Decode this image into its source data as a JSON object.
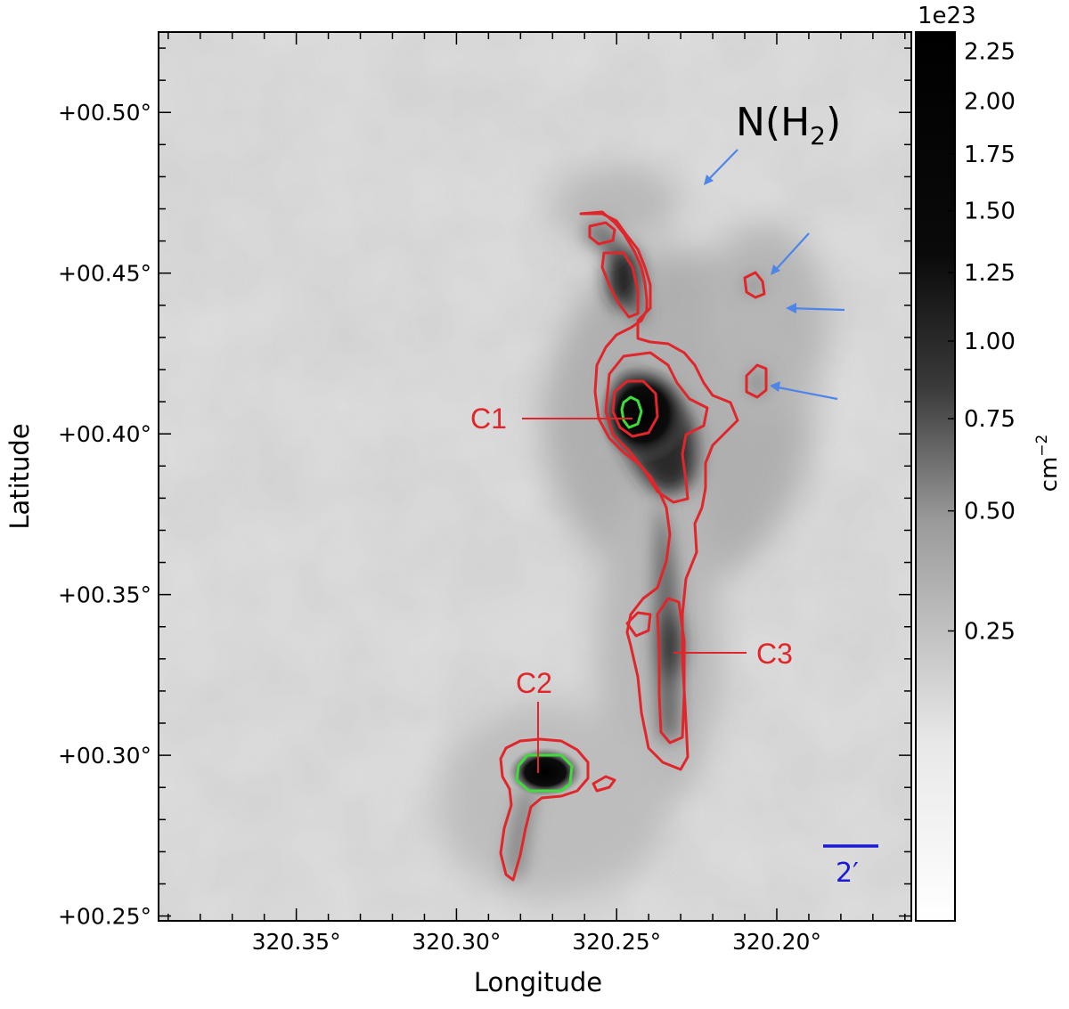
{
  "figure": {
    "x_axis": {
      "label": "Longitude",
      "ticks": [
        "320.35°",
        "320.30°",
        "320.25°",
        "320.20°"
      ],
      "range": [
        320.393,
        320.158
      ],
      "tick_values": [
        320.35,
        320.3,
        320.25,
        320.2
      ]
    },
    "y_axis": {
      "label": "Latitude",
      "ticks": [
        "+00.50°",
        "+00.45°",
        "+00.40°",
        "+00.35°",
        "+00.30°",
        "+00.25°"
      ],
      "range": [
        0.2485,
        0.525
      ],
      "tick_values": [
        0.5,
        0.45,
        0.4,
        0.35,
        0.3,
        0.25
      ]
    },
    "colorbar": {
      "exponent_label": "1e23",
      "unit_label": "cm",
      "unit_superscript": "−2",
      "ticks": [
        "2.25",
        "2.00",
        "1.75",
        "1.50",
        "1.25",
        "1.00",
        "0.75",
        "0.50",
        "0.25"
      ],
      "colormap": "gray_r"
    },
    "map_label": {
      "text": "N(H",
      "subscript": "2",
      "suffix": ")"
    },
    "scale_bar": {
      "text": "2′",
      "color": "#1a1ad6"
    },
    "annotations": [
      {
        "text": "C1",
        "color": "#e0262b"
      },
      {
        "text": "C2",
        "color": "#e0262b"
      },
      {
        "text": "C3",
        "color": "#e0262b"
      }
    ],
    "contour_colors": {
      "outer": "#e0262b",
      "inner": "#3ddc3a"
    },
    "arrow_color": "#4d86e8"
  }
}
